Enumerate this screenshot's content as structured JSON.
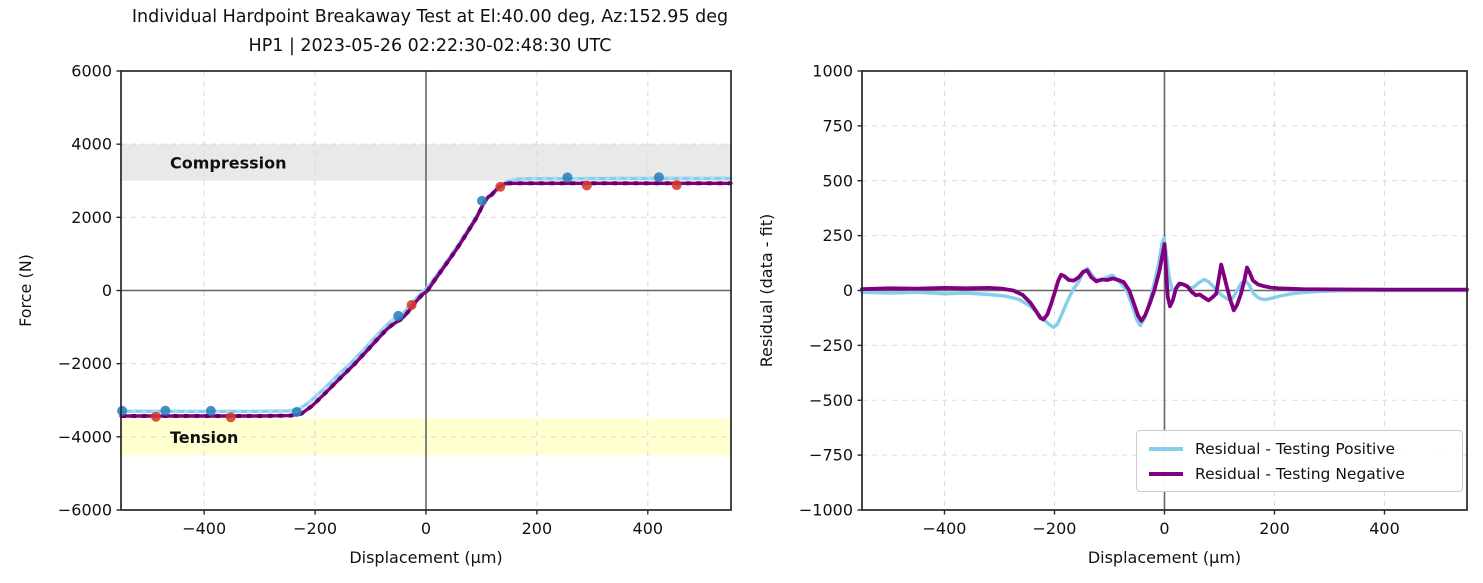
{
  "title": "Individual Hardpoint Breakaway Test at El:40.00 deg, Az:152.95 deg",
  "subtitle": "HP1 | 2023-05-26 02:22:30-02:48:30 UTC",
  "colors": {
    "testing_positive": "#87ceeb",
    "testing_positive_marker": "#a9dcf2",
    "testing_negative": "#800080",
    "testing_negative_marker": "#660066",
    "scatter_positive": "#2e7ebc",
    "scatter_negative": "#d8392e",
    "compression_band": "#e9e9e9",
    "tension_band": "#ffffd0",
    "grid": "#dcdcdc",
    "zero_line": "#666666",
    "spine": "#262626",
    "tick_text": "#111111"
  },
  "chart_data": [
    {
      "type": "line",
      "panel": "force-vs-displacement",
      "xlabel": "Displacement (μm)",
      "ylabel": "Force (N)",
      "xlim": [
        -550,
        550
      ],
      "ylim": [
        -6000,
        6000
      ],
      "xticks": [
        -400,
        -200,
        0,
        200,
        400
      ],
      "xtick_labels": [
        "−400",
        "−200",
        "0",
        "200",
        "400"
      ],
      "yticks": [
        -6000,
        -4000,
        -2000,
        0,
        2000,
        4000,
        6000
      ],
      "ytick_labels": [
        "−6000",
        "−4000",
        "−2000",
        "0",
        "2000",
        "4000",
        "6000"
      ],
      "grid": true,
      "bands": [
        {
          "label": "Compression",
          "y0": 3000,
          "y1": 4000,
          "color_key": "compression_band"
        },
        {
          "label": "Tension",
          "y0": -4500,
          "y1": -3500,
          "color_key": "tension_band"
        }
      ],
      "series": [
        {
          "name": "Testing Positive",
          "kind": "line",
          "color_key": "testing_positive",
          "overlay_key": "testing_positive_marker",
          "width": 3.2,
          "points": [
            [
              -550,
              -3300
            ],
            [
              -400,
              -3305
            ],
            [
              -300,
              -3305
            ],
            [
              -250,
              -3295
            ],
            [
              -230,
              -3250
            ],
            [
              -210,
              -3050
            ],
            [
              -185,
              -2700
            ],
            [
              -160,
              -2330
            ],
            [
              -135,
              -1980
            ],
            [
              -110,
              -1580
            ],
            [
              -90,
              -1250
            ],
            [
              -75,
              -1010
            ],
            [
              -65,
              -860
            ],
            [
              -57,
              -780
            ],
            [
              -50,
              -740
            ],
            [
              -43,
              -660
            ],
            [
              -33,
              -480
            ],
            [
              -20,
              -250
            ],
            [
              -8,
              -60
            ],
            [
              0,
              40
            ],
            [
              15,
              330
            ],
            [
              30,
              640
            ],
            [
              45,
              960
            ],
            [
              60,
              1290
            ],
            [
              75,
              1640
            ],
            [
              90,
              2000
            ],
            [
              100,
              2280
            ],
            [
              108,
              2470
            ],
            [
              114,
              2560
            ],
            [
              120,
              2620
            ],
            [
              128,
              2760
            ],
            [
              136,
              2880
            ],
            [
              145,
              2970
            ],
            [
              155,
              3020
            ],
            [
              170,
              3050
            ],
            [
              200,
              3060
            ],
            [
              280,
              3060
            ],
            [
              360,
              3065
            ],
            [
              450,
              3065
            ],
            [
              550,
              3065
            ]
          ]
        },
        {
          "name": "Testing Negative",
          "kind": "line",
          "color_key": "testing_negative",
          "overlay_key": "testing_negative_marker",
          "width": 3.4,
          "points": [
            [
              -550,
              -3430
            ],
            [
              -400,
              -3430
            ],
            [
              -300,
              -3430
            ],
            [
              -245,
              -3420
            ],
            [
              -225,
              -3370
            ],
            [
              -205,
              -3150
            ],
            [
              -180,
              -2780
            ],
            [
              -155,
              -2400
            ],
            [
              -130,
              -2030
            ],
            [
              -105,
              -1620
            ],
            [
              -85,
              -1290
            ],
            [
              -72,
              -1080
            ],
            [
              -62,
              -950
            ],
            [
              -54,
              -870
            ],
            [
              -47,
              -810
            ],
            [
              -40,
              -720
            ],
            [
              -30,
              -540
            ],
            [
              -18,
              -300
            ],
            [
              -6,
              -100
            ],
            [
              2,
              -20
            ],
            [
              16,
              290
            ],
            [
              31,
              610
            ],
            [
              46,
              930
            ],
            [
              61,
              1260
            ],
            [
              76,
              1620
            ],
            [
              91,
              1990
            ],
            [
              101,
              2290
            ],
            [
              108,
              2480
            ],
            [
              113,
              2570
            ],
            [
              118,
              2610
            ],
            [
              126,
              2750
            ],
            [
              134,
              2860
            ],
            [
              143,
              2920
            ],
            [
              152,
              2930
            ],
            [
              170,
              2930
            ],
            [
              280,
              2930
            ],
            [
              400,
              2930
            ],
            [
              550,
              2930
            ]
          ]
        },
        {
          "name": "Breakaway points positive",
          "kind": "scatter",
          "color_key": "scatter_positive",
          "radius": 5,
          "points": [
            [
              -548,
              -3290
            ],
            [
              -470,
              -3285
            ],
            [
              -388,
              -3290
            ],
            [
              -233,
              -3320
            ],
            [
              -50,
              -695
            ],
            [
              101,
              2450
            ],
            [
              255,
              3090
            ],
            [
              420,
              3095
            ]
          ]
        },
        {
          "name": "Breakaway points negative",
          "kind": "scatter",
          "color_key": "scatter_negative",
          "radius": 5,
          "points": [
            [
              -487,
              -3450
            ],
            [
              -352,
              -3465
            ],
            [
              -26,
              -395
            ],
            [
              134,
              2835
            ],
            [
              290,
              2870
            ],
            [
              452,
              2880
            ]
          ]
        }
      ]
    },
    {
      "type": "line",
      "panel": "residual-vs-displacement",
      "xlabel": "Displacement (μm)",
      "ylabel": "Residual (data - fit)",
      "xlim": [
        -550,
        550
      ],
      "ylim": [
        -1000,
        1000
      ],
      "xticks": [
        -400,
        -200,
        0,
        200,
        400
      ],
      "xtick_labels": [
        "−400",
        "−200",
        "0",
        "200",
        "400"
      ],
      "yticks": [
        -1000,
        -750,
        -500,
        -250,
        0,
        250,
        500,
        750,
        1000
      ],
      "ytick_labels": [
        "−1000",
        "−750",
        "−500",
        "−250",
        "0",
        "250",
        "500",
        "750",
        "1000"
      ],
      "grid": true,
      "bands": [],
      "legend": {
        "position": "lower right",
        "items": [
          {
            "label": "Residual - Testing Positive",
            "color_key": "testing_positive"
          },
          {
            "label": "Residual - Testing Negative",
            "color_key": "testing_negative"
          }
        ]
      },
      "series": [
        {
          "name": "Residual - Testing Positive",
          "kind": "line",
          "color_key": "testing_positive",
          "width": 3.4,
          "points": [
            [
              -550,
              -8
            ],
            [
              -500,
              -12
            ],
            [
              -450,
              -8
            ],
            [
              -400,
              -15
            ],
            [
              -360,
              -12
            ],
            [
              -320,
              -18
            ],
            [
              -290,
              -25
            ],
            [
              -265,
              -40
            ],
            [
              -245,
              -70
            ],
            [
              -228,
              -110
            ],
            [
              -212,
              -150
            ],
            [
              -202,
              -168
            ],
            [
              -195,
              -155
            ],
            [
              -186,
              -105
            ],
            [
              -176,
              -45
            ],
            [
              -166,
              5
            ],
            [
              -156,
              40
            ],
            [
              -148,
              80
            ],
            [
              -140,
              100
            ],
            [
              -133,
              75
            ],
            [
              -125,
              50
            ],
            [
              -115,
              45
            ],
            [
              -105,
              60
            ],
            [
              -95,
              70
            ],
            [
              -87,
              50
            ],
            [
              -78,
              30
            ],
            [
              -68,
              -5
            ],
            [
              -58,
              -75
            ],
            [
              -50,
              -135
            ],
            [
              -44,
              -160
            ],
            [
              -37,
              -130
            ],
            [
              -29,
              -70
            ],
            [
              -20,
              20
            ],
            [
              -11,
              120
            ],
            [
              -4,
              220
            ],
            [
              -1,
              238
            ],
            [
              3,
              170
            ],
            [
              8,
              70
            ],
            [
              13,
              10
            ],
            [
              18,
              -5
            ],
            [
              24,
              15
            ],
            [
              30,
              30
            ],
            [
              37,
              25
            ],
            [
              45,
              10
            ],
            [
              53,
              15
            ],
            [
              62,
              35
            ],
            [
              72,
              50
            ],
            [
              80,
              40
            ],
            [
              88,
              20
            ],
            [
              97,
              -5
            ],
            [
              106,
              -25
            ],
            [
              115,
              -40
            ],
            [
              124,
              -35
            ],
            [
              132,
              0
            ],
            [
              140,
              35
            ],
            [
              147,
              45
            ],
            [
              154,
              25
            ],
            [
              162,
              -15
            ],
            [
              172,
              -35
            ],
            [
              182,
              -42
            ],
            [
              195,
              -35
            ],
            [
              210,
              -25
            ],
            [
              230,
              -15
            ],
            [
              255,
              -8
            ],
            [
              290,
              -3
            ],
            [
              350,
              0
            ],
            [
              450,
              0
            ],
            [
              550,
              0
            ]
          ]
        },
        {
          "name": "Residual - Testing Negative",
          "kind": "line",
          "color_key": "testing_negative",
          "width": 3.8,
          "points": [
            [
              -550,
              6
            ],
            [
              -500,
              10
            ],
            [
              -450,
              8
            ],
            [
              -400,
              12
            ],
            [
              -360,
              10
            ],
            [
              -320,
              12
            ],
            [
              -295,
              8
            ],
            [
              -275,
              0
            ],
            [
              -258,
              -20
            ],
            [
              -244,
              -55
            ],
            [
              -233,
              -95
            ],
            [
              -226,
              -125
            ],
            [
              -220,
              -132
            ],
            [
              -213,
              -110
            ],
            [
              -206,
              -60
            ],
            [
              -199,
              -5
            ],
            [
              -193,
              45
            ],
            [
              -188,
              72
            ],
            [
              -182,
              65
            ],
            [
              -174,
              48
            ],
            [
              -165,
              45
            ],
            [
              -156,
              60
            ],
            [
              -148,
              85
            ],
            [
              -141,
              92
            ],
            [
              -133,
              60
            ],
            [
              -124,
              42
            ],
            [
              -114,
              50
            ],
            [
              -104,
              48
            ],
            [
              -94,
              55
            ],
            [
              -84,
              48
            ],
            [
              -74,
              38
            ],
            [
              -64,
              0
            ],
            [
              -55,
              -65
            ],
            [
              -48,
              -115
            ],
            [
              -42,
              -138
            ],
            [
              -35,
              -112
            ],
            [
              -27,
              -60
            ],
            [
              -18,
              5
            ],
            [
              -9,
              90
            ],
            [
              -3,
              170
            ],
            [
              0,
              212
            ],
            [
              3,
              80
            ],
            [
              6,
              -30
            ],
            [
              10,
              -72
            ],
            [
              15,
              -45
            ],
            [
              21,
              10
            ],
            [
              27,
              32
            ],
            [
              34,
              28
            ],
            [
              42,
              18
            ],
            [
              50,
              -8
            ],
            [
              57,
              -22
            ],
            [
              64,
              -18
            ],
            [
              72,
              -32
            ],
            [
              80,
              -45
            ],
            [
              87,
              -32
            ],
            [
              94,
              -15
            ],
            [
              99,
              60
            ],
            [
              103,
              118
            ],
            [
              108,
              70
            ],
            [
              114,
              10
            ],
            [
              120,
              -45
            ],
            [
              126,
              -90
            ],
            [
              132,
              -65
            ],
            [
              139,
              -15
            ],
            [
              145,
              45
            ],
            [
              150,
              105
            ],
            [
              155,
              80
            ],
            [
              161,
              45
            ],
            [
              170,
              28
            ],
            [
              180,
              20
            ],
            [
              192,
              14
            ],
            [
              206,
              10
            ],
            [
              225,
              8
            ],
            [
              250,
              6
            ],
            [
              300,
              5
            ],
            [
              400,
              4
            ],
            [
              550,
              4
            ]
          ]
        }
      ]
    }
  ]
}
